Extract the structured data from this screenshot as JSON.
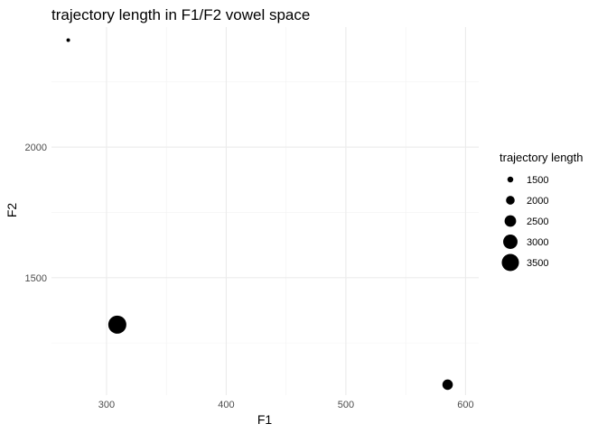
{
  "chart_data": {
    "type": "scatter",
    "title": "trajectory length in F1/F2 vowel space",
    "xlabel": "F1",
    "ylabel": "F2",
    "xlim": [
      254,
      611
    ],
    "ylim": [
      1050,
      2460
    ],
    "x_ticks": [
      300,
      400,
      500,
      600
    ],
    "x_minor_ticks": [
      350,
      450,
      550
    ],
    "y_ticks": [
      1500,
      2000
    ],
    "y_minor_ticks": [
      1250,
      1750,
      2250
    ],
    "grid": true,
    "points": [
      {
        "x": 268,
        "y": 2410,
        "size": 1100
      },
      {
        "x": 309,
        "y": 1320,
        "size": 3650
      },
      {
        "x": 585,
        "y": 1090,
        "size": 2300
      }
    ],
    "legend": {
      "title": "trajectory length",
      "placement": "right",
      "entries": [
        {
          "label": "1500",
          "size": 1500
        },
        {
          "label": "2000",
          "size": 2000
        },
        {
          "label": "2500",
          "size": 2500
        },
        {
          "label": "3000",
          "size": 3000
        },
        {
          "label": "3500",
          "size": 3500
        }
      ]
    },
    "colors": {
      "point": "#000000",
      "grid": "#ebebeb"
    }
  }
}
